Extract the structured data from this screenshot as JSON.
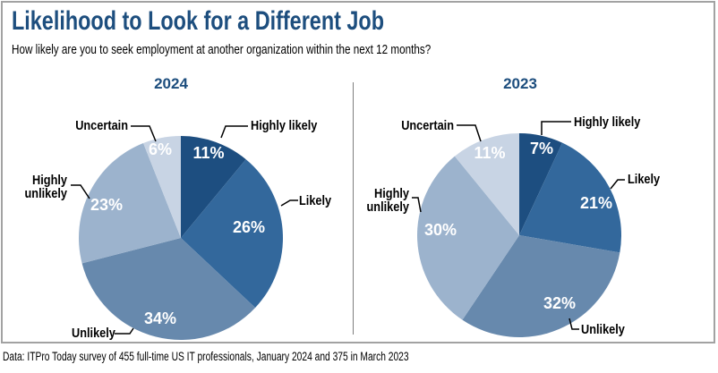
{
  "title": "Likelihood to Look for a Different Job",
  "subtitle": "How likely are you to seek employment at another organization within the next 12 months?",
  "footer": "Data: ITPro Today survey of 455 full-time US IT professionals, January 2024 and 375 in March 2023",
  "colors": {
    "title_text": "#1d4e7e",
    "slice_highly_likely": "#1d4e80",
    "slice_likely": "#33689c",
    "slice_unlikely": "#6789ad",
    "slice_highly_unlikely": "#9cb3cd",
    "slice_uncertain": "#c8d4e4",
    "percent_label": "#ffffff",
    "callout_line": "#000000",
    "border": "#a2a2a2",
    "divider": "#7f7f7f"
  },
  "chart_data": [
    {
      "type": "pie",
      "title": "2024",
      "categories": [
        "Highly likely",
        "Likely",
        "Unlikely",
        "Highly unlikely",
        "Uncertain"
      ],
      "values": [
        11,
        26,
        34,
        23,
        6
      ],
      "unit": "%",
      "start_angle_deg": 0,
      "direction": "clockwise",
      "label_style": "outside-callouts",
      "value_labels": "inside-white"
    },
    {
      "type": "pie",
      "title": "2023",
      "categories": [
        "Highly likely",
        "Likely",
        "Unlikely",
        "Highly unlikely",
        "Uncertain"
      ],
      "values": [
        7,
        21,
        32,
        30,
        11
      ],
      "unit": "%",
      "start_angle_deg": 0,
      "direction": "clockwise",
      "label_style": "outside-callouts",
      "value_labels": "inside-white"
    }
  ]
}
